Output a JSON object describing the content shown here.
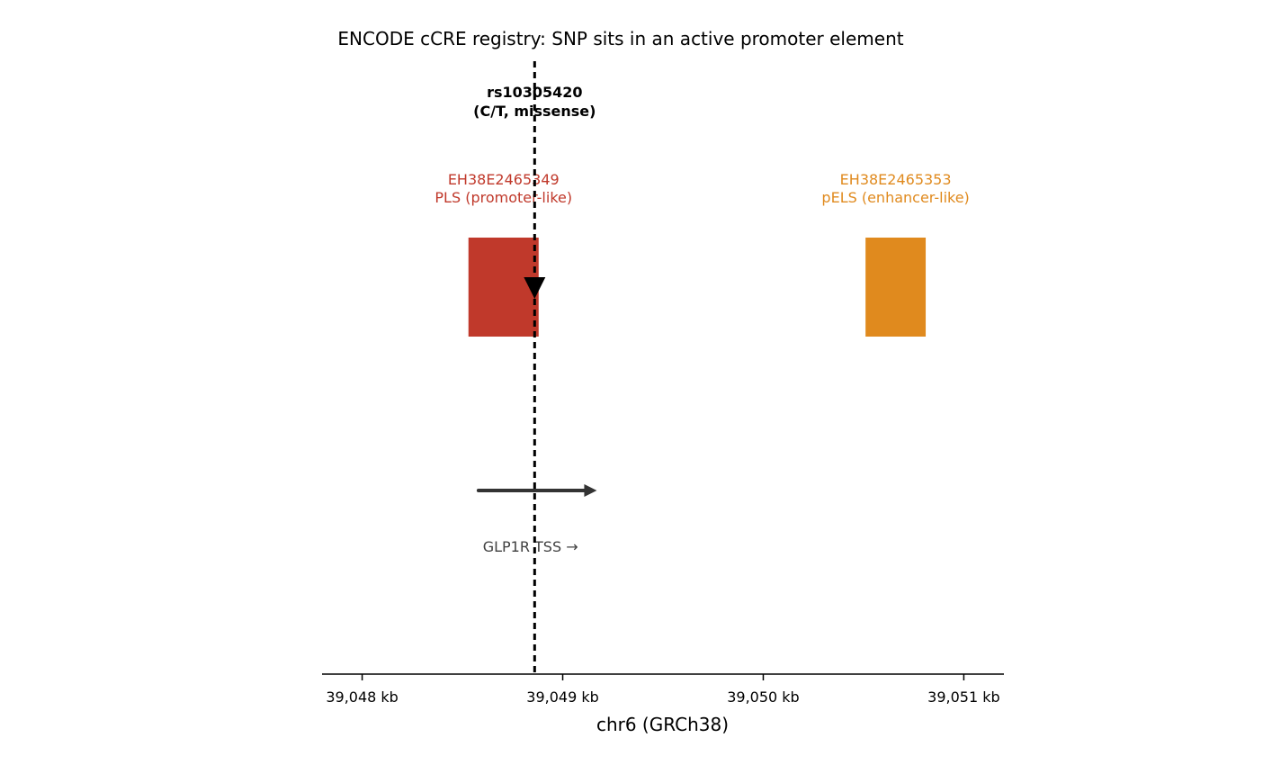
{
  "chart_data": {
    "type": "genome-track",
    "title": "ENCODE cCRE registry: SNP sits in an active promoter element",
    "xlabel": "chr6 (GRCh38)",
    "xlim_kb": [
      39047.8,
      39051.2
    ],
    "x_ticks": [
      {
        "value_kb": 39048,
        "label": "39,048 kb"
      },
      {
        "value_kb": 39049,
        "label": "39,049 kb"
      },
      {
        "value_kb": 39050,
        "label": "39,050 kb"
      },
      {
        "value_kb": 39051,
        "label": "39,051 kb"
      }
    ],
    "grid": false,
    "snp": {
      "id": "rs10305420",
      "detail": "(C/T, missense)",
      "position_kb": 39048.86
    },
    "ccres": [
      {
        "accession": "EH38E2465349",
        "class_label": "PLS (promoter-like)",
        "start_kb": 39048.53,
        "end_kb": 39048.88,
        "color": "#c0392b"
      },
      {
        "accession": "EH38E2465353",
        "class_label": "pELS (enhancer-like)",
        "start_kb": 39050.51,
        "end_kb": 39050.81,
        "color": "#e08a1e"
      }
    ],
    "gene": {
      "label": "GLP1R  TSS →",
      "tss_kb": 39048.58,
      "arrow_end_kb": 39049.17,
      "strand": "+",
      "color": "#333333"
    },
    "snp_color": "#000000",
    "axis_color": "#000000"
  }
}
